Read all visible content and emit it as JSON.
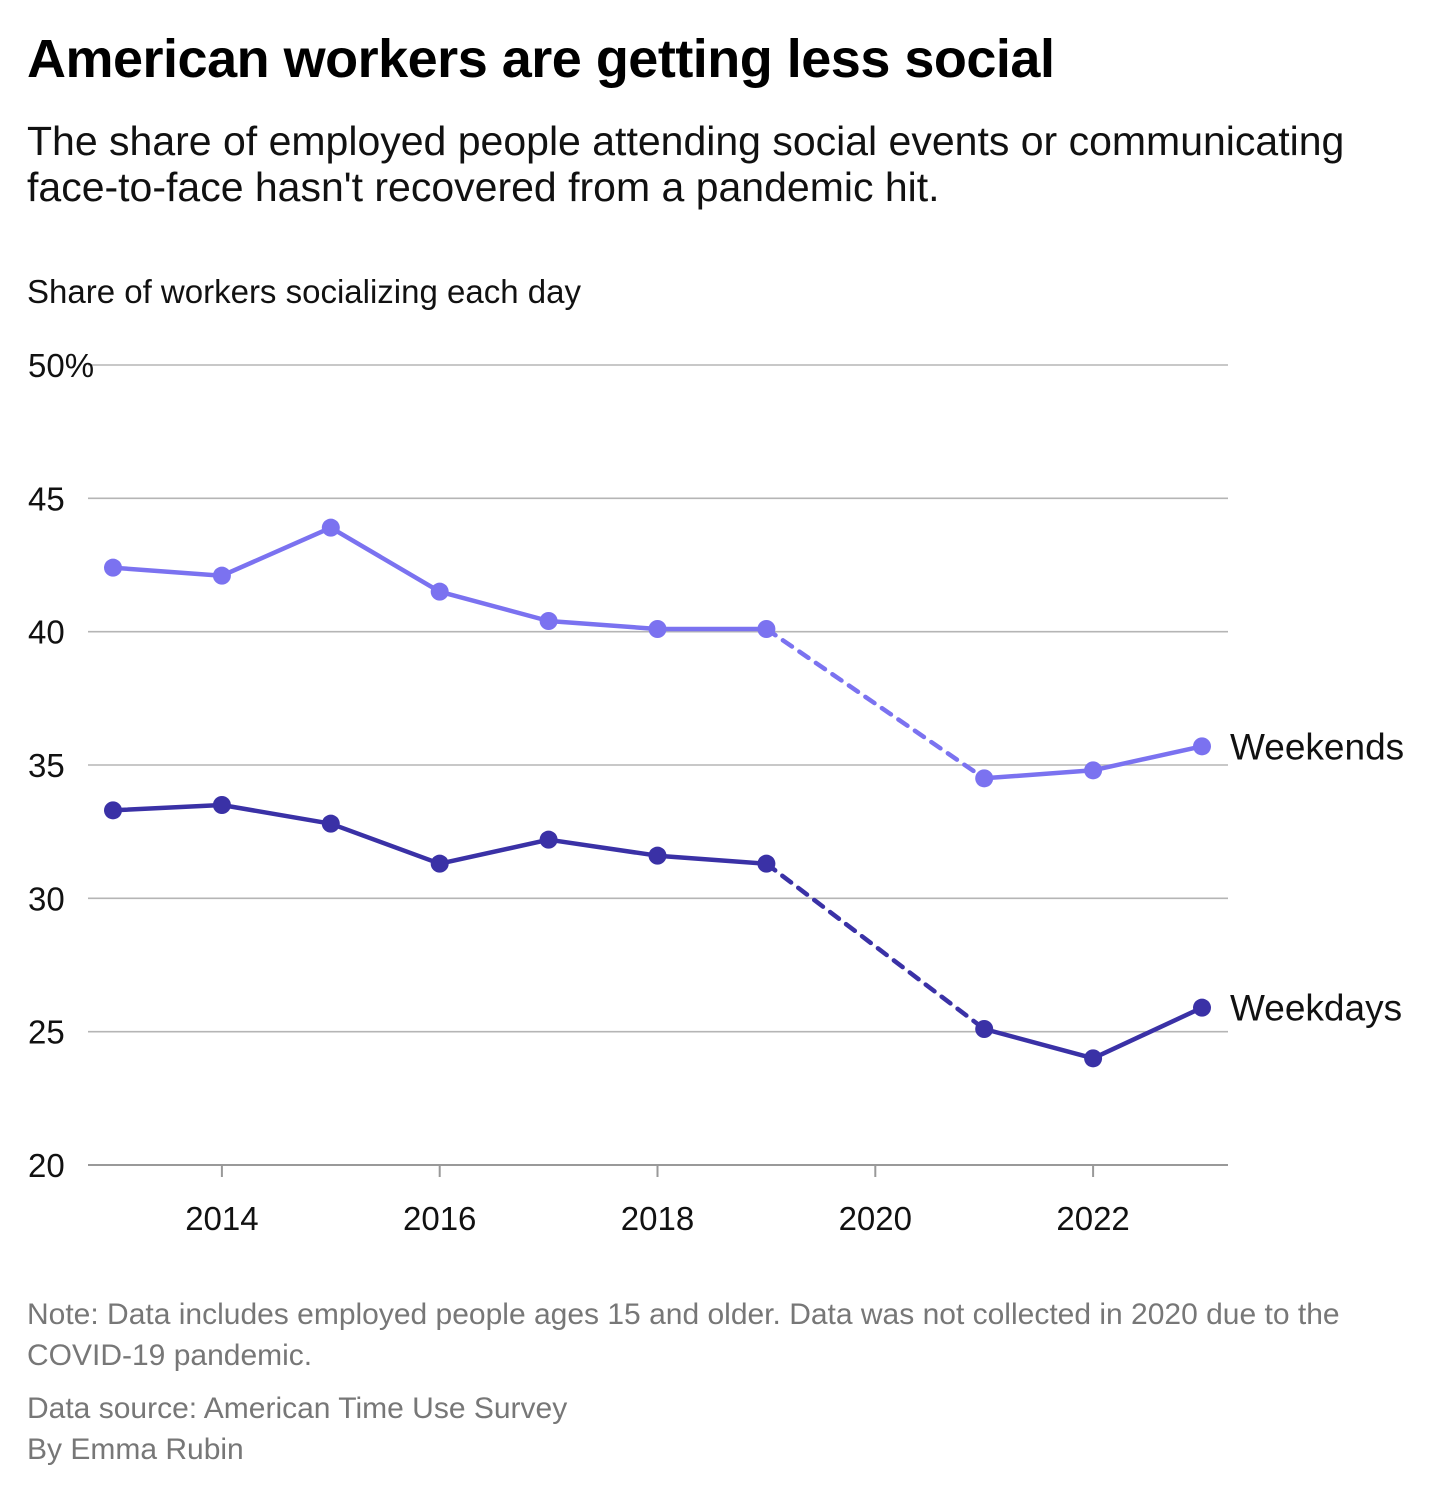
{
  "header": {
    "title": "American workers are getting less social",
    "subtitle": "The share of employed people attending social events or communicating face-to-face hasn't recovered from a pandemic hit."
  },
  "footer": {
    "note": "Note: Data includes employed people ages 15 and older. Data was not collected in 2020 due to the COVID-19 pandemic.",
    "source": "Data source: American Time Use Survey",
    "byline": "By Emma Rubin"
  },
  "chart_data": {
    "type": "line",
    "title": "American workers are getting less social",
    "subtitle": "The share of employed people attending social events or communicating face-to-face hasn't recovered from a pandemic hit.",
    "ylabel": "Share of workers socializing each day",
    "xlabel": "",
    "ylim": [
      20,
      50
    ],
    "xlim": [
      2013,
      2023
    ],
    "y_ticks": [
      20,
      25,
      30,
      35,
      40,
      45,
      50
    ],
    "y_tick_labels": [
      "20",
      "25",
      "30",
      "35",
      "40",
      "45",
      "50%"
    ],
    "x_ticks": [
      2014,
      2016,
      2018,
      2020,
      2022
    ],
    "x_tick_labels": [
      "2014",
      "2016",
      "2018",
      "2020",
      "2022"
    ],
    "grid": true,
    "legend": "direct labels at line ends",
    "gap": {
      "after": 2019,
      "before": 2021,
      "style": "dashed"
    },
    "x": [
      2013,
      2014,
      2015,
      2016,
      2017,
      2018,
      2019,
      2021,
      2022,
      2023
    ],
    "series": [
      {
        "name": "Weekends",
        "color": "#7b72f0",
        "values": [
          42.4,
          42.1,
          43.9,
          41.5,
          40.4,
          40.1,
          40.1,
          34.5,
          34.8,
          35.7
        ]
      },
      {
        "name": "Weekdays",
        "color": "#3a31a6",
        "values": [
          33.3,
          33.5,
          32.8,
          31.3,
          32.2,
          31.6,
          31.3,
          25.1,
          24.0,
          25.9
        ]
      }
    ]
  }
}
